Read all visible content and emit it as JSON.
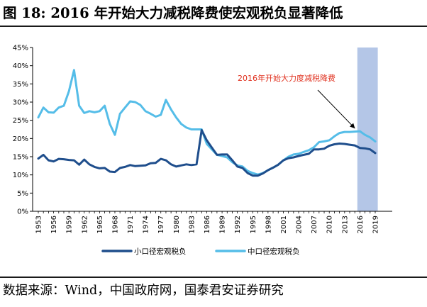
{
  "header": {
    "title": "图 18: 2016 年开始大力减税降费使宏观税负显著降低"
  },
  "footer": {
    "source": "数据来源：Wind，中国政府网，国泰君安证券研究"
  },
  "chart_data": {
    "type": "line",
    "title": "",
    "xlabel": "",
    "ylabel": "",
    "ylim": [
      0,
      45
    ],
    "y_ticks": [
      "0%",
      "5%",
      "10%",
      "15%",
      "20%",
      "25%",
      "30%",
      "35%",
      "40%",
      "45%"
    ],
    "x_tick_labels": [
      "1953",
      "1956",
      "1959",
      "1962",
      "1965",
      "1968",
      "1971",
      "1974",
      "1977",
      "1980",
      "1983",
      "1986",
      "1989",
      "1992",
      "1995",
      "1998",
      "2001",
      "2004",
      "2007",
      "2010",
      "2013",
      "2016",
      "2019"
    ],
    "x": [
      1953,
      1954,
      1955,
      1956,
      1957,
      1958,
      1959,
      1960,
      1961,
      1962,
      1963,
      1964,
      1965,
      1966,
      1967,
      1968,
      1969,
      1970,
      1971,
      1972,
      1973,
      1974,
      1975,
      1976,
      1977,
      1978,
      1979,
      1980,
      1981,
      1982,
      1983,
      1984,
      1985,
      1986,
      1987,
      1988,
      1989,
      1990,
      1991,
      1992,
      1993,
      1994,
      1995,
      1996,
      1997,
      1998,
      1999,
      2000,
      2001,
      2002,
      2003,
      2004,
      2005,
      2006,
      2007,
      2008,
      2009,
      2010,
      2011,
      2012,
      2013,
      2014,
      2015,
      2016,
      2017,
      2018,
      2019
    ],
    "shaded_region": [
      2015.5,
      2019.5
    ],
    "grid": false,
    "legend_position": "bottom",
    "series": [
      {
        "name": "小口径宏观税负",
        "color": "#1f4e8c",
        "values": [
          14.5,
          15.5,
          14.0,
          13.7,
          14.4,
          14.3,
          14.1,
          14.0,
          12.8,
          14.2,
          12.9,
          12.2,
          11.8,
          11.9,
          10.9,
          10.8,
          11.9,
          12.2,
          12.7,
          12.4,
          12.5,
          12.6,
          13.2,
          13.3,
          14.4,
          14.0,
          12.9,
          12.3,
          12.6,
          12.9,
          12.7,
          12.9,
          22.3,
          19.5,
          17.5,
          15.5,
          15.6,
          15.6,
          14.0,
          12.3,
          11.9,
          10.5,
          9.8,
          9.8,
          10.4,
          11.3,
          12.0,
          12.8,
          14.0,
          14.6,
          14.8,
          15.2,
          15.5,
          15.8,
          17.0,
          17.0,
          17.2,
          18.0,
          18.4,
          18.6,
          18.5,
          18.3,
          18.1,
          17.4,
          17.3,
          17.0,
          16.0
        ]
      },
      {
        "name": "中口径宏观税负",
        "color": "#55bde8",
        "values": [
          25.8,
          28.5,
          27.2,
          27.1,
          28.5,
          29.0,
          33.0,
          38.8,
          29.0,
          27.0,
          27.5,
          27.2,
          27.5,
          29.0,
          24.0,
          21.0,
          26.8,
          28.5,
          30.2,
          30.0,
          29.2,
          27.5,
          26.8,
          26.0,
          26.5,
          30.6,
          28.0,
          25.8,
          24.0,
          23.0,
          22.5,
          22.5,
          22.5,
          18.5,
          17.0,
          15.5,
          15.2,
          14.8,
          13.5,
          12.6,
          12.3,
          11.1,
          10.5,
          10.1,
          10.5,
          11.3,
          12.0,
          12.8,
          14.0,
          15.0,
          15.6,
          15.8,
          16.3,
          16.8,
          17.6,
          19.0,
          19.2,
          19.5,
          20.6,
          21.5,
          21.8,
          21.8,
          21.9,
          22.0,
          21.0,
          20.3,
          19.2
        ]
      }
    ],
    "annotations": [
      {
        "text": "2016年开始大力度减税降费",
        "arrow_to_year": 2016,
        "arrow_to_value": 22
      }
    ]
  }
}
